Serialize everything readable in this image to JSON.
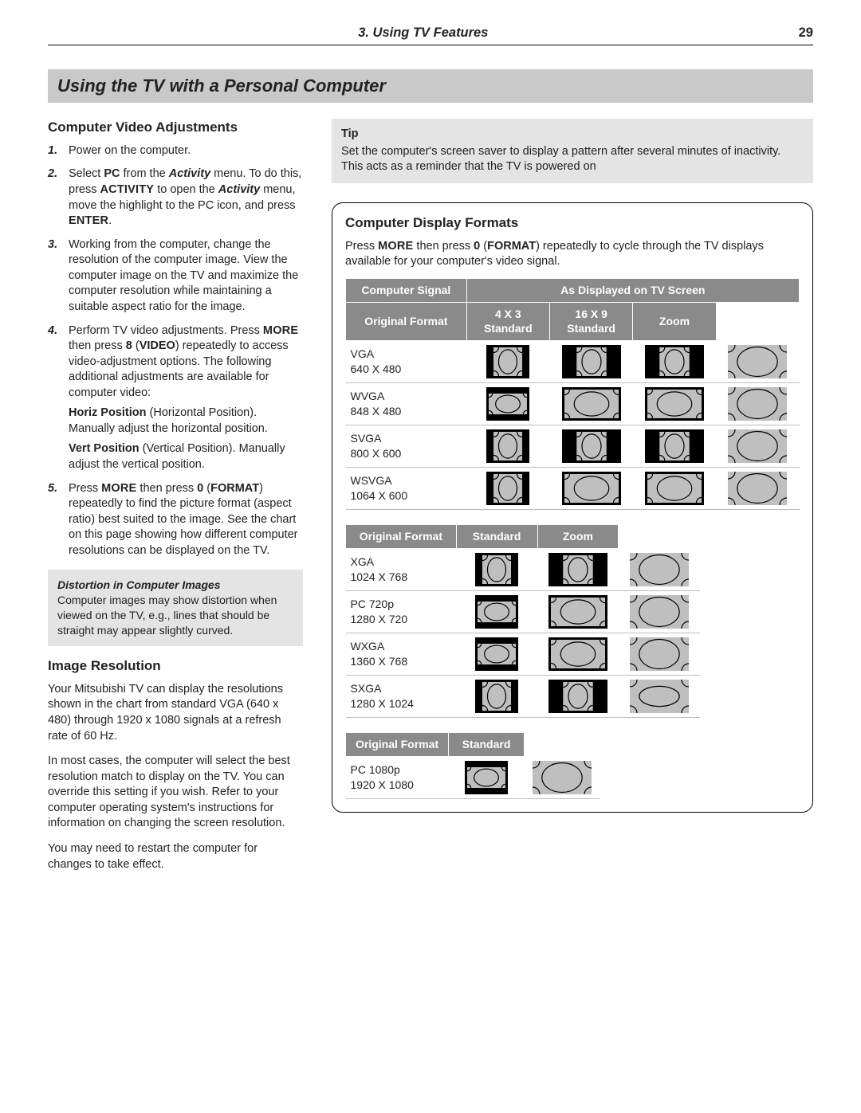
{
  "header": {
    "chapter": "3.  Using TV Features",
    "page": "29"
  },
  "banner": "Using the TV with a Personal Computer",
  "left": {
    "section1_title": "Computer Video Adjustments",
    "steps": {
      "s1": "Power on the computer.",
      "s2": "Select PC from the Activity menu.  To do this, press ACTIVITY to open the Activity menu, move the highlight to the PC icon, and press ENTER.",
      "s3": "Working from the computer, change the resolution of the computer image.  View the computer image on the TV and maximize the computer resolution while maintaining a suitable aspect ratio for the image.",
      "s4a": "Perform TV video adjustments.  Press MORE then press 8 (VIDEO) repeatedly to access video-adjustment options.  The following additional adjustments are available for computer video:",
      "s4b_label": "Horiz Position",
      "s4b_paren": "(Horizontal Position).",
      "s4b_body": "Manually adjust the horizontal position.",
      "s4c_label": "Vert Position",
      "s4c_paren": "(Vertical Position).",
      "s4c_body": "Manually adjust the vertical position.",
      "s5": "Press MORE then press 0 (FORMAT) repeatedly to find the picture format (aspect ratio) best suited to the image.  See the chart on this page showing how different computer resolutions can be displayed on the TV."
    },
    "note_title": "Distortion in Computer Images",
    "note_body": "Computer images may show distortion when viewed on the TV, e.g., lines that should be straight may appear slightly curved.",
    "section2_title": "Image Resolution",
    "para2a": "Your Mitsubishi TV can display the resolutions shown in the chart from standard VGA (640 x 480) through 1920 x 1080 signals at a refresh rate of 60 Hz.",
    "para2b": "In most cases, the computer will select the best resolution match to display on the TV.  You can override this setting if you wish.  Refer to your computer operating system's instructions for information on changing the screen resolution.",
    "para2c": "You may need to restart the computer for changes to take effect."
  },
  "tip": {
    "title": "Tip",
    "body": "Set the computer's screen saver to display a pattern after several minutes of inactivity.  This acts as a reminder that the TV is powered on"
  },
  "panel": {
    "title": "Computer Display Formats",
    "intro": "Press MORE then press 0 (FORMAT) repeatedly to cycle through the TV displays available for your computer's video signal.",
    "hdr": {
      "cs": "Computer Signal",
      "asd": "As Displayed on TV Screen",
      "of": "Original Format",
      "c43a": "4 X 3",
      "c43b": "Standard",
      "c169a": "16 X 9",
      "c169b": "Standard",
      "zoom": "Zoom",
      "std": "Standard"
    },
    "table1_rows": [
      {
        "sig": "VGA\n640 X 480",
        "cells": [
          "4:3-dark-sm",
          "4:3-dark-lg",
          "4:3-dark-lg",
          "zoom-light"
        ]
      },
      {
        "sig": "WVGA\n848 X 480",
        "cells": [
          "16:9-dark-sm",
          "16:9-dark-lg",
          "16:9-dark-lg",
          "zoom-light"
        ]
      },
      {
        "sig": "SVGA\n800 X 600",
        "cells": [
          "4:3-dark-sm",
          "4:3-dark-lg",
          "4:3-dark-lg",
          "zoom-light"
        ]
      },
      {
        "sig": "WSVGA\n1064 X 600",
        "cells": [
          "4:3-dark-sm",
          "16:9-dark-lg",
          "16:9-dark-lg",
          "zoom-light"
        ]
      }
    ],
    "table2_rows": [
      {
        "sig": "XGA\n1024 X 768",
        "cells": [
          "4:3-dark-sm",
          "4:3-dark-lg",
          "zoom-light"
        ]
      },
      {
        "sig": "PC 720p\n1280 X 720",
        "cells": [
          "16:9-dark-sm",
          "16:9-dark-lg",
          "zoom-light"
        ]
      },
      {
        "sig": "WXGA\n1360 X 768",
        "cells": [
          "16:9-dark-sm",
          "16:9-dark-lg",
          "zoom-light"
        ]
      },
      {
        "sig": "SXGA\n1280 X 1024",
        "cells": [
          "4:3-dark-sm",
          "4:3-dark-lg",
          "zoom-light-tall"
        ]
      }
    ],
    "table3_rows": [
      {
        "sig": "PC 1080p\n1920 X 1080",
        "cells": [
          "16:9-dark-sm",
          "zoom-light"
        ]
      }
    ],
    "icon_style": {
      "w": 74,
      "h": 42,
      "colors": {
        "dark": "#000000",
        "grey": "#bfbfbf",
        "stroke": "#000000",
        "light_bg": "#ffffff"
      }
    }
  }
}
